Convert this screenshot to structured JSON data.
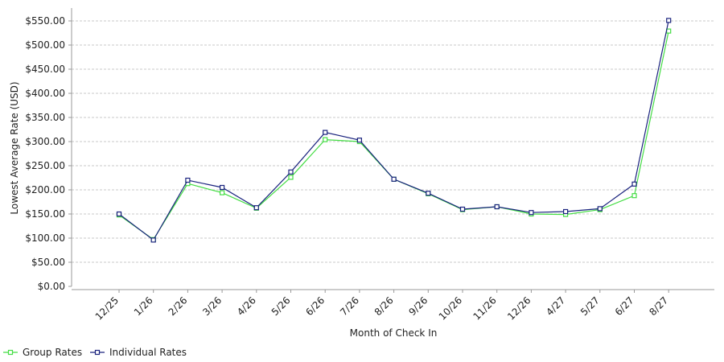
{
  "chart_data": {
    "type": "line",
    "categories": [
      "12/25",
      "1/26",
      "2/26",
      "3/26",
      "4/26",
      "5/26",
      "6/26",
      "7/26",
      "8/26",
      "9/26",
      "10/26",
      "11/26",
      "12/26",
      "4/27",
      "5/27",
      "6/27",
      "8/27"
    ],
    "series": [
      {
        "name": "Group Rates",
        "color": "#44dd44",
        "values": [
          148,
          97,
          213,
          194,
          162,
          226,
          304,
          300,
          222,
          192,
          159,
          165,
          150,
          149,
          159,
          188,
          529
        ]
      },
      {
        "name": "Individual Rates",
        "color": "#1a237e",
        "values": [
          150,
          96,
          220,
          205,
          163,
          237,
          319,
          303,
          222,
          193,
          160,
          165,
          153,
          155,
          161,
          212,
          551
        ]
      }
    ],
    "xlabel": "Month of Check In",
    "ylabel": "Lowest Average Rate (USD)",
    "ylim": [
      0,
      550
    ],
    "yticks": [
      0,
      50,
      100,
      150,
      200,
      250,
      300,
      350,
      400,
      450,
      500,
      550
    ],
    "ytick_labels": [
      "$0.00",
      "$50.00",
      "$100.00",
      "$150.00",
      "$200.00",
      "$250.00",
      "$300.00",
      "$350.00",
      "$400.00",
      "$450.00",
      "$500.00",
      "$550.00"
    ],
    "grid": true,
    "legend": "bottom-left"
  }
}
